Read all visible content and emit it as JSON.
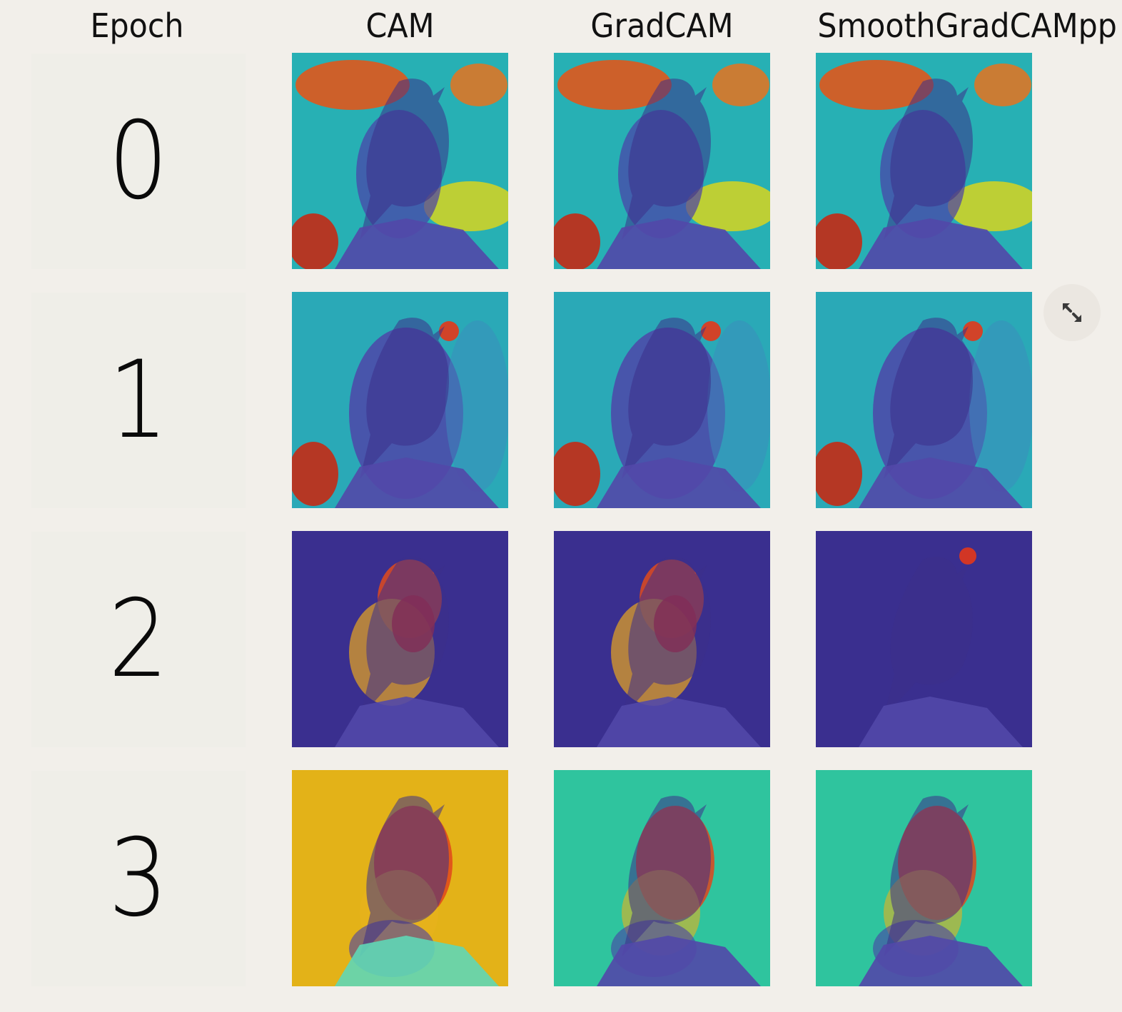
{
  "headers": {
    "epoch": "Epoch",
    "cam": "CAM",
    "gradcam": "GradCAM",
    "smoothgradcampp": "SmoothGradCAMpp"
  },
  "epochs": [
    "0",
    "1",
    "2",
    "3"
  ],
  "methods": [
    "CAM",
    "GradCAM",
    "SmoothGradCAMpp"
  ],
  "expand_icon": "expand-icon",
  "colors": {
    "background": "#f2efea",
    "tile": "#efeee8",
    "heat_low": "#3b2f9a",
    "heat_mid": "#22c3a6",
    "heat_high": "#e0371b"
  }
}
